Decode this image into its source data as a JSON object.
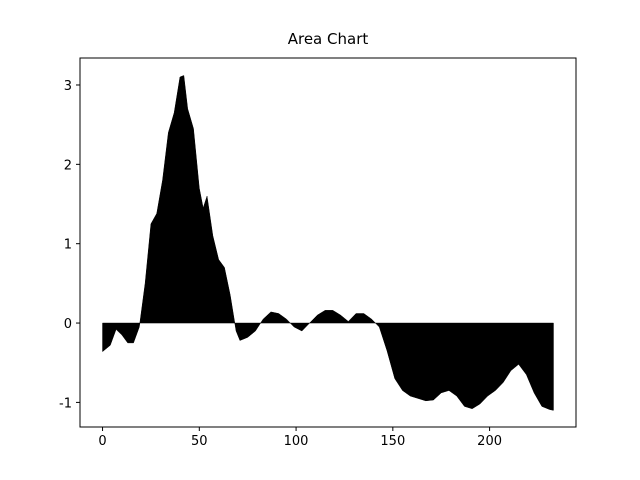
{
  "chart_data": {
    "type": "area",
    "title": "Area Chart",
    "color": "#000000",
    "x": [
      0,
      4,
      7,
      10,
      13,
      16,
      19,
      22,
      25,
      28,
      31,
      34,
      37,
      40,
      42,
      44,
      47,
      50,
      52,
      54,
      57,
      60,
      63,
      66,
      69,
      71,
      75,
      79,
      83,
      87,
      91,
      95,
      99,
      103,
      107,
      111,
      115,
      119,
      123,
      127,
      131,
      135,
      139,
      143,
      147,
      151,
      155,
      159,
      163,
      167,
      171,
      175,
      179,
      183,
      187,
      191,
      195,
      199,
      203,
      207,
      211,
      215,
      219,
      223,
      227,
      231,
      233
    ],
    "values": [
      -0.36,
      -0.28,
      -0.08,
      -0.15,
      -0.25,
      -0.25,
      -0.05,
      0.5,
      1.25,
      1.38,
      1.8,
      2.4,
      2.65,
      3.1,
      3.12,
      2.7,
      2.45,
      1.7,
      1.45,
      1.6,
      1.1,
      0.8,
      0.7,
      0.35,
      -0.1,
      -0.22,
      -0.18,
      -0.1,
      0.05,
      0.14,
      0.12,
      0.05,
      -0.05,
      -0.1,
      0.0,
      0.1,
      0.16,
      0.16,
      0.1,
      0.02,
      0.12,
      0.12,
      0.05,
      -0.05,
      -0.35,
      -0.7,
      -0.85,
      -0.92,
      -0.95,
      -0.98,
      -0.97,
      -0.88,
      -0.85,
      -0.92,
      -1.05,
      -1.08,
      -1.02,
      -0.92,
      -0.85,
      -0.75,
      -0.6,
      -0.52,
      -0.65,
      -0.88,
      -1.05,
      -1.09,
      -1.1
    ],
    "xlim": [
      -11.65,
      244.65
    ],
    "ylim": [
      -1.31,
      3.34
    ],
    "xticks": [
      0,
      50,
      100,
      150,
      200
    ],
    "yticks": [
      -1,
      0,
      1,
      2,
      3
    ]
  }
}
